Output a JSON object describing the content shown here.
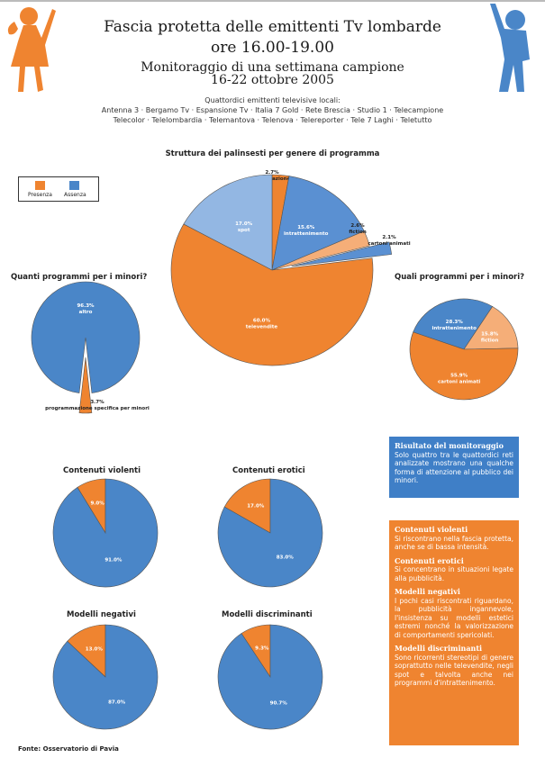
{
  "header": {
    "title_line1": "Fascia protetta delle emittenti Tv lombarde",
    "title_line2": "ore 16.00-19.00",
    "subtitle_line1": "Monitoraggio di una settimana campione",
    "subtitle_line2": "16-22 ottobre 2005",
    "stations_intro": "Quattordici emittenti televisive locali:",
    "stations_line1": "Antenna 3 · Bergamo Tv · Espansione Tv · Italia 7 Gold · Rete Brescia · Studio 1 · Telecampione",
    "stations_line2": "Telecolor · Telelombardia · Telemantova · Telenova · Telereporter · Tele 7 Laghi · Teletutto"
  },
  "legend": {
    "presence": "Presenza",
    "absence": "Assenza"
  },
  "colors": {
    "orange": "#ef8430",
    "blue": "#4a86c8",
    "light_blue": "#93b7e3",
    "light_orange": "#f5ae78",
    "mid_blue": "#5a90d2"
  },
  "chart_data": [
    {
      "id": "structure",
      "type": "pie",
      "title": "Struttura dei palinsesti per genere di programma",
      "slices": [
        {
          "label": "informazione",
          "value": 2.7,
          "display": "2.7%"
        },
        {
          "label": "intrattenimento",
          "value": 15.6,
          "display": "15.6%"
        },
        {
          "label": "fiction",
          "value": 2.6,
          "display": "2.6%"
        },
        {
          "label": "cartoni animati",
          "value": 2.1,
          "display": "2.1%"
        },
        {
          "label": "televendite",
          "value": 60.0,
          "display": "60.0%"
        },
        {
          "label": "spot",
          "value": 17.0,
          "display": "17.0%"
        }
      ]
    },
    {
      "id": "how_many",
      "type": "pie",
      "title": "Quanti programmi per i minori?",
      "slices": [
        {
          "label": "altro",
          "value": 96.3,
          "display": "96.3%"
        },
        {
          "label": "programmazione specifica per minori",
          "value": 3.7,
          "display": "3.7%"
        }
      ]
    },
    {
      "id": "which",
      "type": "pie",
      "title": "Quali programmi per i minori?",
      "slices": [
        {
          "label": "intrattenimento",
          "value": 28.3,
          "display": "28.3%"
        },
        {
          "label": "fiction",
          "value": 15.8,
          "display": "15.8%"
        },
        {
          "label": "cartoni animati",
          "value": 55.9,
          "display": "55.9%"
        }
      ]
    },
    {
      "id": "violent",
      "type": "pie",
      "title": "Contenuti violenti",
      "slices": [
        {
          "label": "Presenza",
          "value": 9.0,
          "display": "9.0%"
        },
        {
          "label": "Assenza",
          "value": 91.0,
          "display": "91.0%"
        }
      ]
    },
    {
      "id": "erotic",
      "type": "pie",
      "title": "Contenuti erotici",
      "slices": [
        {
          "label": "Presenza",
          "value": 17.0,
          "display": "17.0%"
        },
        {
          "label": "Assenza",
          "value": 83.0,
          "display": "83.0%"
        }
      ]
    },
    {
      "id": "negative",
      "type": "pie",
      "title": "Modelli negativi",
      "slices": [
        {
          "label": "Presenza",
          "value": 13.0,
          "display": "13.0%"
        },
        {
          "label": "Assenza",
          "value": 87.0,
          "display": "87.0%"
        }
      ]
    },
    {
      "id": "discriminating",
      "type": "pie",
      "title": "Modelli discriminanti",
      "slices": [
        {
          "label": "Presenza",
          "value": 9.3,
          "display": "9.3%"
        },
        {
          "label": "Assenza",
          "value": 90.7,
          "display": "90.7%"
        }
      ]
    }
  ],
  "result_box": {
    "heading": "Risultato del monitoraggio",
    "text": "Solo quattro tra le quattordici reti analizzate mostrano una qualche forma di attenzione al pubblico dei minori."
  },
  "findings": [
    {
      "heading": "Contenuti violenti",
      "text": "Si riscontrano nella fascia protetta, anche se di bassa intensità."
    },
    {
      "heading": "Contenuti erotici",
      "text": "Si concentrano in situazioni legate alla pubblicità."
    },
    {
      "heading": "Modelli negativi",
      "text": "I pochi casi riscontrati riguardano, la pubblicità ingannevole, l'insistenza su modelli estetici estremi nonché la valorizzazione di comportamenti spericolati."
    },
    {
      "heading": "Modelli discriminanti",
      "text": "Sono ricorrenti stereotipi di genere soprattutto nelle televendite, negli spot e talvolta anche nei programmi d'intrattenimento."
    }
  ],
  "footer": "Fonte: Osservatorio di Pavia"
}
